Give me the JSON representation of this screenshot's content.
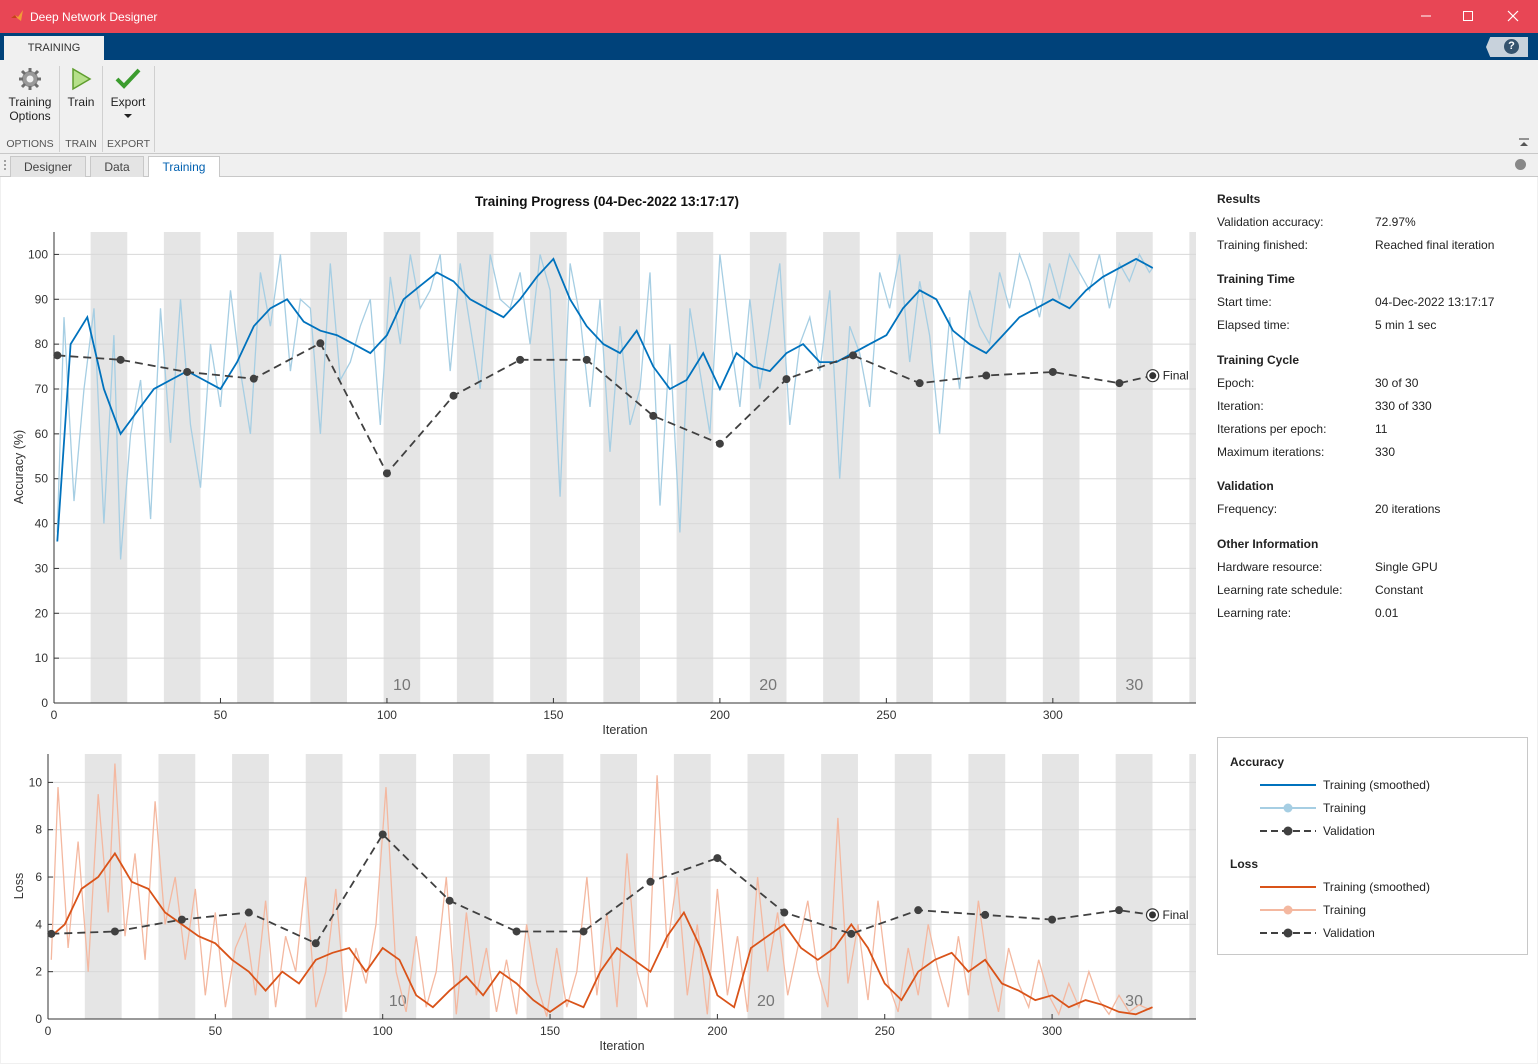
{
  "window": {
    "title": "Deep Network Designer",
    "controls": [
      "minimize",
      "maximize",
      "close"
    ]
  },
  "ribbon": {
    "tab": "TRAINING",
    "help_glyph": "?",
    "buttons": [
      {
        "label_line1": "Training",
        "label_line2": "Options",
        "icon": "gear-icon"
      },
      {
        "label_line1": "Train",
        "label_line2": "",
        "icon": "play-icon"
      },
      {
        "label_line1": "Export",
        "label_line2": "",
        "icon": "checkmark-icon"
      }
    ],
    "groups": [
      "OPTIONS",
      "TRAIN",
      "EXPORT"
    ]
  },
  "doc_tabs": [
    "Designer",
    "Data",
    "Training"
  ],
  "active_doc_tab": "Training",
  "colors": {
    "titlebar": "#e84655",
    "ribbon_tab_strip": "#00427a",
    "accuracy_smoothed": "#0072bd",
    "accuracy_raw": "#a6cee3",
    "loss_smoothed": "#d95319",
    "loss_raw": "#f4b8a0",
    "validation": "#404040"
  },
  "plot_title": "Training Progress (04-Dec-2022 13:17:17)",
  "results": {
    "heading": "Results",
    "rows": [
      {
        "k": "Validation accuracy:",
        "v": "72.97%"
      },
      {
        "k": "Training finished:",
        "v": "Reached final iteration"
      }
    ]
  },
  "training_time": {
    "heading": "Training Time",
    "rows": [
      {
        "k": "Start time:",
        "v": "04-Dec-2022 13:17:17"
      },
      {
        "k": "Elapsed time:",
        "v": "5 min 1 sec"
      }
    ]
  },
  "training_cycle": {
    "heading": "Training Cycle",
    "rows": [
      {
        "k": "Epoch:",
        "v": "30 of 30"
      },
      {
        "k": "Iteration:",
        "v": "330 of 330"
      },
      {
        "k": "Iterations per epoch:",
        "v": "11"
      },
      {
        "k": "Maximum iterations:",
        "v": "330"
      }
    ]
  },
  "validation": {
    "heading": "Validation",
    "rows": [
      {
        "k": "Frequency:",
        "v": "20 iterations"
      }
    ]
  },
  "other_info": {
    "heading": "Other Information",
    "rows": [
      {
        "k": "Hardware resource:",
        "v": "Single GPU"
      },
      {
        "k": "Learning rate schedule:",
        "v": "Constant"
      },
      {
        "k": "Learning rate:",
        "v": "0.01"
      }
    ]
  },
  "legend": {
    "accuracy_heading": "Accuracy",
    "loss_heading": "Loss",
    "items": [
      "Training (smoothed)",
      "Training",
      "Validation"
    ]
  },
  "chart_data": [
    {
      "type": "line",
      "title": "Training Progress (04-Dec-2022 13:17:17)",
      "xlabel": "Iteration",
      "ylabel": "Accuracy (%)",
      "xlim": [
        0,
        343
      ],
      "ylim": [
        0,
        105
      ],
      "xticks": [
        0,
        50,
        100,
        150,
        200,
        250,
        300
      ],
      "yticks": [
        0,
        10,
        20,
        30,
        40,
        50,
        60,
        70,
        80,
        90,
        100
      ],
      "grid": true,
      "epoch_bands": true,
      "iterations_per_epoch": 11,
      "epoch_labels": [
        10,
        20,
        30
      ],
      "final_marker_label": "Final",
      "series": [
        {
          "name": "Training (smoothed)",
          "x": [
            1,
            5,
            10,
            15,
            20,
            25,
            30,
            35,
            40,
            45,
            50,
            55,
            60,
            65,
            70,
            75,
            80,
            85,
            90,
            95,
            100,
            105,
            110,
            115,
            120,
            125,
            130,
            135,
            140,
            145,
            150,
            155,
            160,
            165,
            170,
            175,
            180,
            185,
            190,
            195,
            200,
            205,
            210,
            215,
            220,
            225,
            230,
            235,
            240,
            245,
            250,
            255,
            260,
            265,
            270,
            275,
            280,
            285,
            290,
            295,
            300,
            305,
            310,
            315,
            320,
            325,
            330
          ],
          "values": [
            36,
            80,
            86,
            70,
            60,
            65,
            70,
            72,
            74,
            72,
            70,
            76,
            84,
            88,
            90,
            85,
            83,
            82,
            80,
            78,
            82,
            90,
            93,
            96,
            94,
            90,
            88,
            86,
            90,
            95,
            99,
            90,
            84,
            80,
            78,
            83,
            75,
            70,
            72,
            78,
            70,
            78,
            75,
            74,
            78,
            80,
            76,
            76,
            78,
            80,
            82,
            88,
            92,
            90,
            83,
            80,
            78,
            82,
            86,
            88,
            90,
            88,
            92,
            95,
            97,
            99,
            97
          ]
        },
        {
          "name": "Training",
          "x": [
            1,
            3,
            6,
            9,
            12,
            15,
            18,
            20,
            23,
            26,
            29,
            32,
            35,
            38,
            41,
            44,
            47,
            50,
            53,
            56,
            59,
            62,
            65,
            68,
            71,
            74,
            77,
            80,
            83,
            86,
            89,
            92,
            95,
            98,
            101,
            104,
            107,
            110,
            113,
            116,
            119,
            122,
            125,
            128,
            131,
            134,
            137,
            140,
            143,
            146,
            149,
            152,
            155,
            158,
            161,
            164,
            167,
            170,
            173,
            176,
            179,
            182,
            185,
            188,
            191,
            194,
            197,
            200,
            203,
            206,
            209,
            212,
            215,
            218,
            221,
            224,
            227,
            230,
            233,
            236,
            239,
            242,
            245,
            248,
            251,
            254,
            257,
            260,
            263,
            266,
            269,
            272,
            275,
            278,
            281,
            284,
            287,
            290,
            293,
            296,
            299,
            302,
            305,
            308,
            311,
            314,
            317,
            320,
            323,
            326,
            329,
            330
          ],
          "values": [
            38,
            86,
            45,
            70,
            88,
            40,
            82,
            32,
            60,
            72,
            41,
            88,
            58,
            90,
            62,
            48,
            80,
            66,
            92,
            74,
            60,
            96,
            84,
            100,
            74,
            90,
            88,
            60,
            98,
            72,
            76,
            84,
            90,
            62,
            95,
            80,
            100,
            88,
            92,
            100,
            74,
            98,
            84,
            70,
            100,
            90,
            88,
            96,
            80,
            100,
            92,
            46,
            98,
            86,
            66,
            90,
            56,
            84,
            62,
            70,
            96,
            44,
            80,
            38,
            88,
            74,
            60,
            100,
            82,
            66,
            90,
            70,
            84,
            98,
            62,
            80,
            86,
            74,
            92,
            50,
            84,
            78,
            66,
            96,
            88,
            100,
            76,
            94,
            82,
            60,
            86,
            70,
            92,
            84,
            80,
            96,
            88,
            100,
            94,
            86,
            98,
            90,
            100,
            96,
            92,
            100,
            88,
            98,
            94,
            100,
            96,
            97
          ]
        },
        {
          "name": "Validation",
          "x": [
            1,
            20,
            40,
            60,
            80,
            100,
            120,
            140,
            160,
            180,
            200,
            220,
            240,
            260,
            280,
            300,
            320,
            330
          ],
          "values": [
            77.5,
            76.5,
            73.8,
            72.3,
            80.2,
            51.2,
            68.5,
            76.5,
            76.5,
            64,
            57.8,
            72.2,
            77.5,
            71.3,
            73,
            73.8,
            71.3,
            72.97
          ]
        }
      ]
    },
    {
      "type": "line",
      "xlabel": "Iteration",
      "ylabel": "Loss",
      "xlim": [
        0,
        343
      ],
      "ylim": [
        0,
        11.2
      ],
      "xticks": [
        0,
        50,
        100,
        150,
        200,
        250,
        300
      ],
      "yticks": [
        0,
        2,
        4,
        6,
        8,
        10
      ],
      "grid": true,
      "epoch_bands": true,
      "iterations_per_epoch": 11,
      "epoch_labels": [
        10,
        20,
        30
      ],
      "final_marker_label": "Final",
      "series": [
        {
          "name": "Training (smoothed)",
          "x": [
            1,
            5,
            10,
            15,
            20,
            25,
            30,
            35,
            40,
            45,
            50,
            55,
            60,
            65,
            70,
            75,
            80,
            85,
            90,
            95,
            100,
            105,
            110,
            115,
            120,
            125,
            130,
            135,
            140,
            145,
            150,
            155,
            160,
            165,
            170,
            175,
            180,
            185,
            190,
            195,
            200,
            205,
            210,
            215,
            220,
            225,
            230,
            235,
            240,
            245,
            250,
            255,
            260,
            265,
            270,
            275,
            280,
            285,
            290,
            295,
            300,
            305,
            310,
            315,
            320,
            325,
            330
          ],
          "values": [
            3.5,
            4.0,
            5.5,
            6.0,
            7.0,
            5.8,
            5.5,
            4.5,
            4.0,
            3.5,
            3.2,
            2.5,
            2.0,
            1.2,
            2.0,
            1.5,
            2.5,
            2.8,
            3.0,
            2.0,
            3.0,
            2.5,
            1.0,
            0.5,
            1.2,
            1.8,
            1.0,
            2.0,
            1.5,
            0.8,
            0.3,
            0.8,
            0.5,
            2.0,
            3.0,
            2.5,
            2.0,
            3.5,
            4.5,
            3.0,
            1.0,
            0.5,
            3.0,
            3.5,
            4.0,
            3.0,
            2.5,
            3.0,
            4.0,
            3.0,
            1.5,
            0.8,
            2.0,
            2.5,
            2.8,
            2.0,
            2.5,
            1.5,
            1.2,
            0.8,
            1.0,
            0.5,
            0.8,
            0.6,
            0.3,
            0.2,
            0.5
          ]
        },
        {
          "name": "Training",
          "x": [
            1,
            3,
            6,
            9,
            12,
            15,
            18,
            20,
            23,
            26,
            29,
            32,
            35,
            38,
            41,
            44,
            47,
            50,
            53,
            56,
            59,
            62,
            65,
            68,
            71,
            74,
            77,
            80,
            83,
            86,
            89,
            92,
            95,
            98,
            101,
            104,
            107,
            110,
            113,
            116,
            119,
            122,
            125,
            128,
            131,
            134,
            137,
            140,
            143,
            146,
            149,
            152,
            155,
            158,
            161,
            164,
            167,
            170,
            173,
            176,
            179,
            182,
            185,
            188,
            191,
            194,
            197,
            200,
            203,
            206,
            209,
            212,
            215,
            218,
            221,
            224,
            227,
            230,
            233,
            236,
            239,
            242,
            245,
            248,
            251,
            254,
            257,
            260,
            263,
            266,
            269,
            272,
            275,
            278,
            281,
            284,
            287,
            290,
            293,
            296,
            299,
            302,
            305,
            308,
            311,
            314,
            317,
            320,
            323,
            326,
            329,
            330
          ],
          "values": [
            2.5,
            9.8,
            3.0,
            7.5,
            2.0,
            9.5,
            4.5,
            10.8,
            3.5,
            7.0,
            2.5,
            9.2,
            4.0,
            6.0,
            2.5,
            5.5,
            1.0,
            4.5,
            0.5,
            3.0,
            4.0,
            1.0,
            5.0,
            0.5,
            3.5,
            2.0,
            6.0,
            0.5,
            2.0,
            5.5,
            0.3,
            3.0,
            1.5,
            4.0,
            9.8,
            2.0,
            0.3,
            3.5,
            0.5,
            2.0,
            6.0,
            0.2,
            4.5,
            1.0,
            3.0,
            0.3,
            2.5,
            0.2,
            4.0,
            1.5,
            0.1,
            3.0,
            0.5,
            2.0,
            6.0,
            1.0,
            4.5,
            0.5,
            7.0,
            2.0,
            0.5,
            10.3,
            3.0,
            6.0,
            1.0,
            4.0,
            0.2,
            5.5,
            1.0,
            3.5,
            0.3,
            6.0,
            2.0,
            4.5,
            1.0,
            3.0,
            5.0,
            2.0,
            0.5,
            8.5,
            1.5,
            4.0,
            0.8,
            5.0,
            1.5,
            0.3,
            3.0,
            1.0,
            4.0,
            2.0,
            0.5,
            3.5,
            1.0,
            5.0,
            2.0,
            0.3,
            3.0,
            1.5,
            0.5,
            2.5,
            1.0,
            0.2,
            1.5,
            0.5,
            2.0,
            0.8,
            0.2,
            1.0,
            0.3,
            0.6,
            0.4,
            0.5
          ]
        },
        {
          "name": "Validation",
          "x": [
            1,
            20,
            40,
            60,
            80,
            100,
            120,
            140,
            160,
            180,
            200,
            220,
            240,
            260,
            280,
            300,
            320,
            330
          ],
          "values": [
            3.6,
            3.7,
            4.2,
            4.5,
            3.2,
            7.8,
            5.0,
            3.7,
            3.7,
            5.8,
            6.8,
            4.5,
            3.6,
            4.6,
            4.4,
            4.2,
            4.6,
            4.4
          ]
        }
      ]
    }
  ]
}
